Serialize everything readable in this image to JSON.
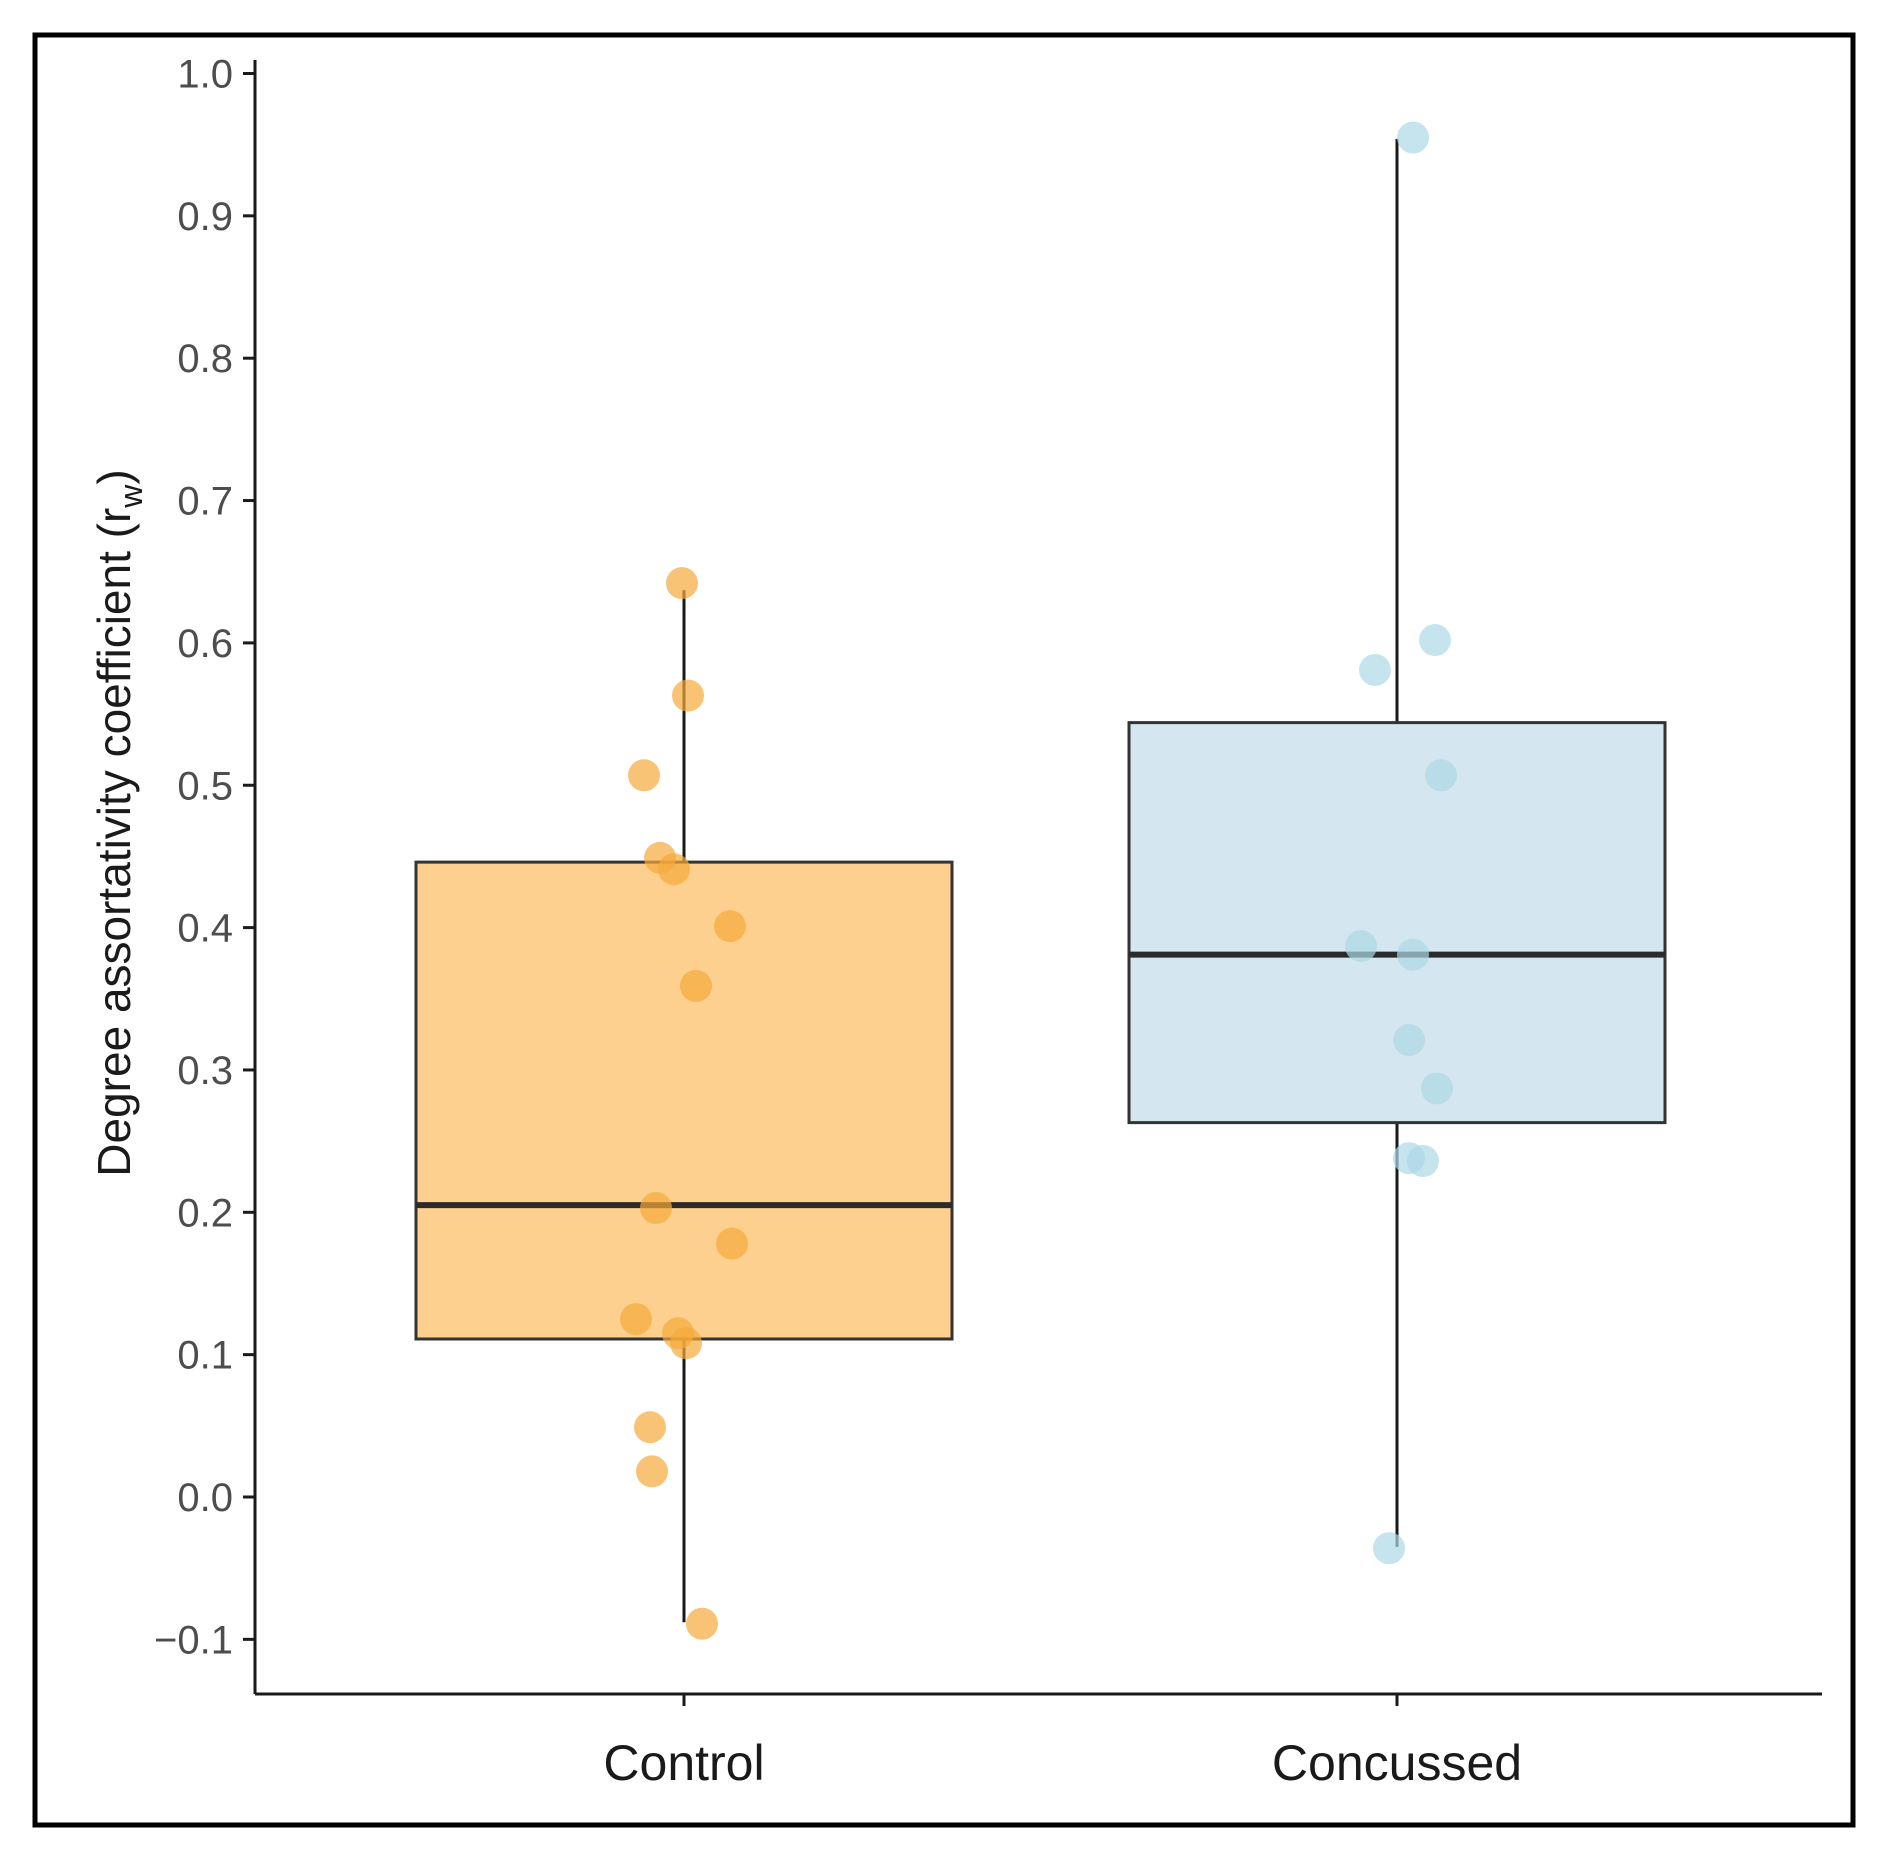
{
  "chart_data": {
    "type": "boxplot",
    "title": "",
    "xlabel": "",
    "ylabel": "Degree assortativity coefficient (r",
    "ylabel_subscript": "w",
    "ylabel_suffix": ")",
    "ylim": [
      -0.14,
      1.0
    ],
    "yticks": [
      -0.1,
      0.0,
      0.1,
      0.2,
      0.3,
      0.4,
      0.5,
      0.6,
      0.7,
      0.8,
      0.9,
      1.0
    ],
    "ytick_labels": [
      "−0.1",
      "0.0",
      "0.1",
      "0.2",
      "0.3",
      "0.4",
      "0.5",
      "0.6",
      "0.7",
      "0.8",
      "0.9",
      "1.0"
    ],
    "categories": [
      "Control",
      "Concussed"
    ],
    "groups": [
      {
        "name": "Control",
        "fill": "#fdd08f",
        "point_color": "#f5a93a",
        "box": {
          "whisker_low": -0.088,
          "q1": 0.111,
          "median": 0.205,
          "q3": 0.446,
          "whisker_high": 0.637
        },
        "points": [
          {
            "y": 0.642,
            "jitter": -0.01
          },
          {
            "y": 0.563,
            "jitter": 0.02
          },
          {
            "y": 0.507,
            "jitter": -0.2
          },
          {
            "y": 0.449,
            "jitter": -0.12
          },
          {
            "y": 0.441,
            "jitter": -0.05
          },
          {
            "y": 0.401,
            "jitter": 0.23
          },
          {
            "y": 0.359,
            "jitter": 0.06
          },
          {
            "y": 0.203,
            "jitter": -0.14
          },
          {
            "y": 0.178,
            "jitter": 0.24
          },
          {
            "y": 0.125,
            "jitter": -0.24
          },
          {
            "y": 0.115,
            "jitter": -0.03
          },
          {
            "y": 0.108,
            "jitter": 0.01
          },
          {
            "y": 0.049,
            "jitter": -0.17
          },
          {
            "y": 0.018,
            "jitter": -0.16
          },
          {
            "y": -0.089,
            "jitter": 0.09
          }
        ]
      },
      {
        "name": "Concussed",
        "fill": "#d4e6f0",
        "point_color": "#add8e6",
        "box": {
          "whisker_low": -0.035,
          "q1": 0.263,
          "median": 0.381,
          "q3": 0.544,
          "whisker_high": 0.954
        },
        "points": [
          {
            "y": 0.955,
            "jitter": 0.08
          },
          {
            "y": 0.602,
            "jitter": 0.19
          },
          {
            "y": 0.581,
            "jitter": -0.11
          },
          {
            "y": 0.507,
            "jitter": 0.22
          },
          {
            "y": 0.387,
            "jitter": -0.18
          },
          {
            "y": 0.381,
            "jitter": 0.08
          },
          {
            "y": 0.321,
            "jitter": 0.06
          },
          {
            "y": 0.287,
            "jitter": 0.2
          },
          {
            "y": 0.238,
            "jitter": 0.06
          },
          {
            "y": 0.236,
            "jitter": 0.13
          },
          {
            "y": -0.036,
            "jitter": -0.04
          }
        ]
      }
    ],
    "grid": false,
    "legend": "none"
  }
}
